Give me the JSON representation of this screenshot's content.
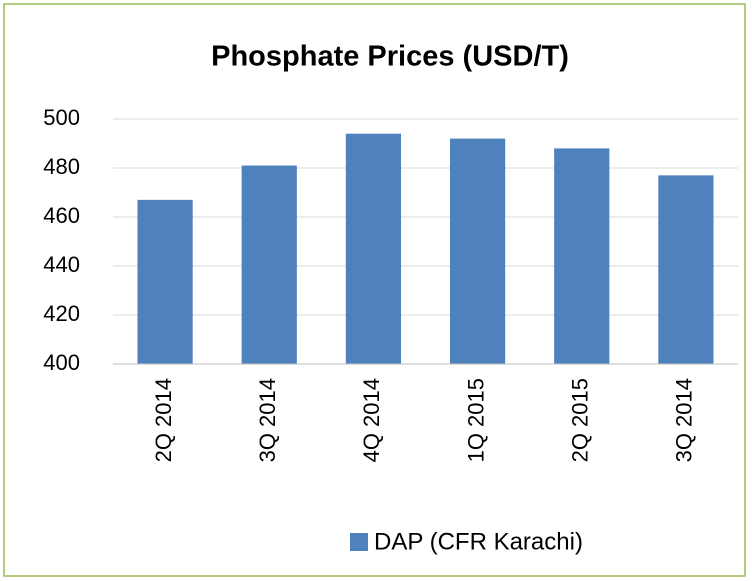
{
  "chart_data": {
    "type": "bar",
    "title": "Phosphate Prices (USD/T)",
    "categories": [
      "2Q 2014",
      "3Q 2014",
      "4Q 2014",
      "1Q 2015",
      "2Q 2015",
      "3Q 2014"
    ],
    "series": [
      {
        "name": "DAP (CFR Karachi)",
        "color": "#4f81bd",
        "values": [
          467,
          481,
          494,
          492,
          488,
          477
        ]
      }
    ],
    "ylim": [
      400,
      500
    ],
    "yticks": [
      400,
      420,
      440,
      460,
      480,
      500
    ],
    "grid": true,
    "legend": "bottom"
  }
}
